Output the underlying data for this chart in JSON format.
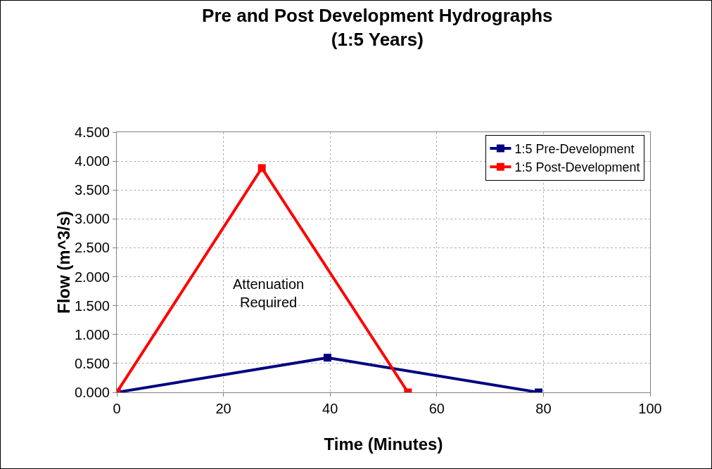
{
  "chart_data": {
    "type": "line",
    "title": "Pre and Post Development Hydrographs\n(1:5 Years)",
    "xlabel": "Time (Minutes)",
    "ylabel": "Flow (m^3/s)",
    "series": [
      {
        "name": "1:5 Pre-Development",
        "color": "#000080",
        "x": [
          0,
          39.5,
          79.1
        ],
        "values": [
          0,
          0.6,
          0
        ]
      },
      {
        "name": "1:5 Post-Development",
        "color": "#ff0000",
        "x": [
          0,
          27.2,
          54.6
        ],
        "values": [
          0,
          3.88,
          0
        ]
      }
    ],
    "annotations": [
      "Attenuation\nRequired"
    ],
    "xlim": [
      0,
      100
    ],
    "xticks": [
      0,
      20,
      40,
      60,
      80,
      100
    ],
    "ylim": [
      0,
      4.5
    ],
    "yticks": [
      {
        "value": 0,
        "label": "0.000"
      },
      {
        "value": 0.5,
        "label": "0.500"
      },
      {
        "value": 1,
        "label": "1.000"
      },
      {
        "value": 1.5,
        "label": "1.500"
      },
      {
        "value": 2,
        "label": "2.000"
      },
      {
        "value": 2.5,
        "label": "2.500"
      },
      {
        "value": 3,
        "label": "3.000"
      },
      {
        "value": 3.5,
        "label": "3.500"
      },
      {
        "value": 4,
        "label": "4.000"
      },
      {
        "value": 4.5,
        "label": "4.500"
      }
    ],
    "grid": true,
    "legend": "top right",
    "marker": "square",
    "line_style": "solid"
  }
}
